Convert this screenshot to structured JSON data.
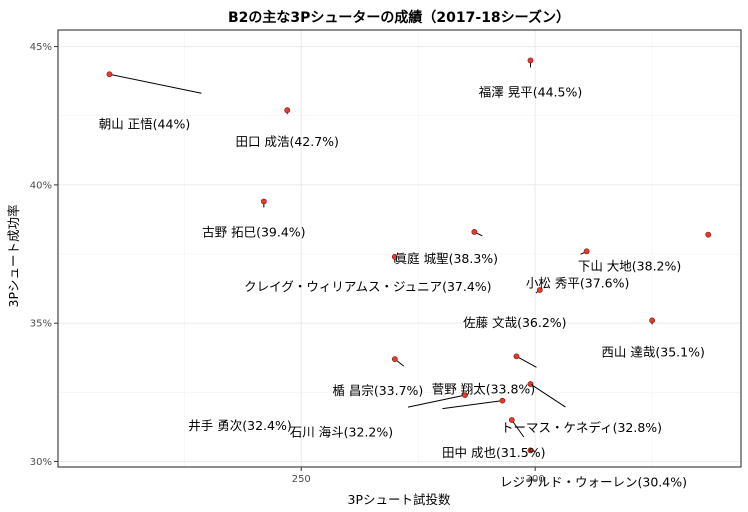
{
  "chart_data": {
    "type": "scatter",
    "title": "B2の主な3Pシューターの成績（2017-18シーズン）",
    "xlabel": "3Pシュート試投数",
    "ylabel": "3Pシュート成功率",
    "xlim": [
      198,
      344
    ],
    "ylim": [
      29.8,
      45.6
    ],
    "x_ticks": [
      250,
      300
    ],
    "x_tick_labels": [
      "250",
      "300"
    ],
    "y_ticks": [
      30,
      35,
      40,
      45
    ],
    "y_tick_labels": [
      "30%",
      "35%",
      "40%",
      "45%"
    ],
    "grid": true,
    "point_color": "#e8392e",
    "points": [
      {
        "label": "朝山 正悟(44%)",
        "x": 209,
        "y": 44.0
      },
      {
        "label": "福澤 晃平(44.5%)",
        "x": 299,
        "y": 44.5
      },
      {
        "label": "田口 成浩(42.7%)",
        "x": 247,
        "y": 42.7
      },
      {
        "label": "古野 拓巳(39.4%)",
        "x": 242,
        "y": 39.4
      },
      {
        "label": "眞庭 城聖(38.3%)",
        "x": 287,
        "y": 38.3
      },
      {
        "label": "下山 大地(38.2%)",
        "x": 337,
        "y": 38.2
      },
      {
        "label": "小松 秀平(37.6%)",
        "x": 311,
        "y": 37.6
      },
      {
        "label": "クレイグ・ウィリアムス・ジュニア(37.4%)",
        "x": 270,
        "y": 37.4
      },
      {
        "label": "佐藤 文哉(36.2%)",
        "x": 301,
        "y": 36.2
      },
      {
        "label": "西山 達哉(35.1%)",
        "x": 325,
        "y": 35.1
      },
      {
        "label": "菅野 翔太(33.8%)",
        "x": 296,
        "y": 33.8
      },
      {
        "label": "楯 昌宗(33.7%)",
        "x": 270,
        "y": 33.7
      },
      {
        "label": "トーマス・ケネディ(32.8%)",
        "x": 299,
        "y": 32.8
      },
      {
        "label": "井手 勇次(32.4%)",
        "x": 285,
        "y": 32.4
      },
      {
        "label": "石川 海斗(32.2%)",
        "x": 293,
        "y": 32.2
      },
      {
        "label": "田中 成也(31.5%)",
        "x": 295,
        "y": 31.5
      },
      {
        "label": "レジナルド・ウォーレン(30.4%)",
        "x": 299,
        "y": 30.4
      }
    ]
  }
}
